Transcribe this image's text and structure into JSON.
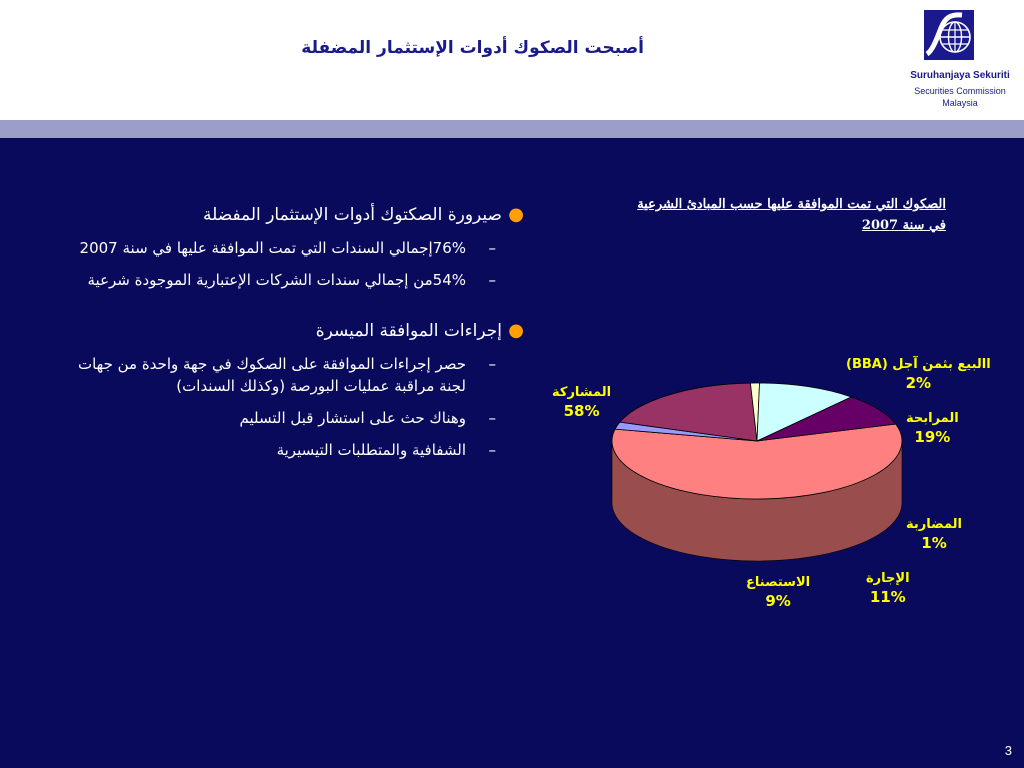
{
  "header": {
    "title": "أصبحت الصكوك أدوات الإستثمار المضفلة",
    "logo": {
      "name": "Suruhanjaya Sekuriti",
      "sub1": "Securities Commission",
      "sub2": "Malaysia",
      "icon": "globe-wave-icon"
    }
  },
  "colors": {
    "band": "#9b9ec8",
    "main_bg": "#0a0a5c",
    "bullet": "#ffa000",
    "label": "#ffff00"
  },
  "bullets": [
    {
      "text": "صيرورة  الصكتوك أدوات الإستثمار المفضلة",
      "subs": [
        "76%إجمالي السندات التي تمت الموافقة عليها في سنة 2007",
        "54%من إجمالي سندات الشركات الإعتبارية الموجودة شرعية"
      ]
    },
    {
      "text": "إجراءات الموافقة الميسرة",
      "subs": [
        "حصر إجراءات الموافقة على الصكوك في جهة واحدة من جهات لجنة مراقبة عمليات البورصة (وكذلك السندات)",
        "وهناك حث على استشار قبل التسليم",
        "الشفافية والمتطلبات التيسيرية"
      ]
    }
  ],
  "chart_data": {
    "type": "pie",
    "title_line1": "الصكوك التي تمت الموافقة عليها حسب المبادئ الشرعية",
    "title_line2": "في سنة 2007",
    "slices": [
      {
        "label": "المشاركة",
        "value": 58,
        "pct": "58%",
        "color": "#ff8080"
      },
      {
        "label": "االبيع بثمن آجل (BBA)",
        "value": 2,
        "pct": "2%",
        "color": "#9999ff"
      },
      {
        "label": "المرابحة",
        "value": 19,
        "pct": "19%",
        "color": "#993366"
      },
      {
        "label": "المضاربة",
        "value": 1,
        "pct": "1%",
        "color": "#ffffcc"
      },
      {
        "label": "الإجارة",
        "value": 11,
        "pct": "11%",
        "color": "#ccffff"
      },
      {
        "label": "الاستصناع",
        "value": 9,
        "pct": "9%",
        "color": "#660066"
      }
    ]
  },
  "page_number": "3"
}
